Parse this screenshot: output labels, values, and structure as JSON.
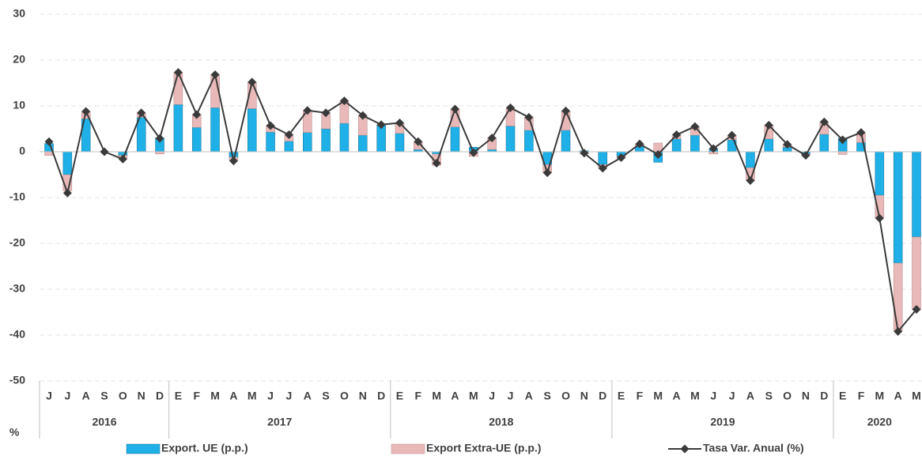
{
  "chart_data": {
    "type": "bar-line",
    "axis_label": "%",
    "groups": [
      {
        "label": "2016",
        "categories": [
          "J",
          "J",
          "A",
          "S",
          "O",
          "N",
          "D"
        ]
      },
      {
        "label": "2017",
        "categories": [
          "E",
          "F",
          "M",
          "A",
          "M",
          "J",
          "J",
          "A",
          "S",
          "O",
          "N",
          "D"
        ]
      },
      {
        "label": "2018",
        "categories": [
          "E",
          "F",
          "M",
          "A",
          "M",
          "J",
          "J",
          "A",
          "S",
          "O",
          "N",
          "D"
        ]
      },
      {
        "label": "2019",
        "categories": [
          "E",
          "F",
          "M",
          "A",
          "M",
          "J",
          "J",
          "A",
          "S",
          "O",
          "N",
          "D"
        ]
      },
      {
        "label": "2020",
        "categories": [
          "E",
          "F",
          "M",
          "A",
          "M"
        ]
      }
    ],
    "ylim": [
      -50,
      30
    ],
    "yticks": [
      -50,
      -40,
      -30,
      -20,
      -10,
      0,
      10,
      20,
      30
    ],
    "grid": true,
    "legend": "bottom",
    "series": [
      {
        "name": "Export. UE (p.p.)",
        "kind": "bar",
        "color": "#1eb0e6",
        "values": [
          1.8,
          -5,
          7.2,
          0,
          -0.8,
          7.5,
          3,
          10.3,
          5.3,
          9.6,
          -1.2,
          9.4,
          4.3,
          2.3,
          4.2,
          5,
          6.2,
          3.6,
          5.8,
          4,
          0.5,
          -0.5,
          5.4,
          1,
          0.5,
          5.6,
          4.7,
          -2.8,
          4.7,
          0.2,
          -2.8,
          -1,
          1.2,
          -2.3,
          2.8,
          3.6,
          0.6,
          2.6,
          -3.5,
          2.8,
          1,
          -0.5,
          3.8,
          3,
          2,
          -9.5,
          -24.3,
          -18.6
        ]
      },
      {
        "name": "Export Extra-UE (p.p.)",
        "kind": "bar",
        "color": "#e9b8b8",
        "values": [
          -0.8,
          -3.5,
          1.5,
          0,
          -0.7,
          1,
          -0.5,
          7,
          2.8,
          7.2,
          -0.7,
          5.8,
          1.4,
          1.4,
          4.8,
          3.5,
          4.9,
          4.3,
          0.1,
          2.3,
          1.7,
          -2.5,
          3.9,
          -1,
          2.5,
          4,
          2.8,
          -1.8,
          4.2,
          -0.4,
          -0.8,
          -0.4,
          0.5,
          1.9,
          0.9,
          1.9,
          -0.5,
          1,
          -2.8,
          3,
          0.6,
          -0.3,
          2.6,
          -0.6,
          2.2,
          -5,
          -14.7,
          -15.8
        ]
      },
      {
        "name": "Tasa Var. Anual (%)",
        "kind": "line",
        "color": "#3a3a3a",
        "values": [
          2.2,
          -9,
          8.8,
          0,
          -1.6,
          8.5,
          2.9,
          17.3,
          8.1,
          16.8,
          -2,
          15.2,
          5.7,
          3.7,
          9,
          8.5,
          11.1,
          7.9,
          5.9,
          6.3,
          2.2,
          -2.5,
          9.3,
          -0.2,
          3,
          9.6,
          7.5,
          -4.6,
          8.9,
          -0.3,
          -3.6,
          -1.3,
          1.7,
          -0.6,
          3.7,
          5.5,
          0.7,
          3.6,
          -6.3,
          5.8,
          1.6,
          -0.8,
          6.5,
          2.6,
          4.2,
          -14.5,
          -39.2,
          -34.4
        ]
      }
    ]
  }
}
